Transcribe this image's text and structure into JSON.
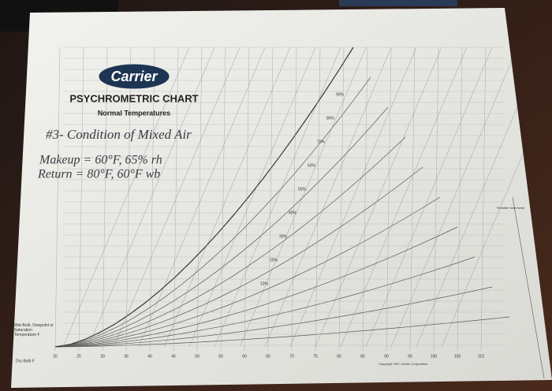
{
  "document": {
    "logo": "Carrier",
    "title": "PSYCHROMETRIC CHART",
    "subtitle": "Normal Temperatures",
    "handwriting": [
      "#3- Condition of Mixed Air",
      "Makeup = 60°F, 65% rh",
      "Return = 80°F, 60°F wb"
    ],
    "dry_bulb_label": "Dry-Bulb F",
    "wet_bulb_label": "Wet-Bulb, Dewpoint or Saturation Temperature F",
    "shf_label": "Sensible heat factor",
    "dry_bulb_ticks": [
      20,
      25,
      30,
      35,
      40,
      45,
      50,
      55,
      60,
      65,
      70,
      75,
      80,
      85,
      90,
      95,
      100,
      105,
      110
    ],
    "rh_labels": [
      "10%",
      "20%",
      "30%",
      "40%",
      "50%",
      "60%",
      "70%",
      "80%",
      "90%"
    ],
    "footer": "Copyright 1967 Carrier Corporation"
  }
}
